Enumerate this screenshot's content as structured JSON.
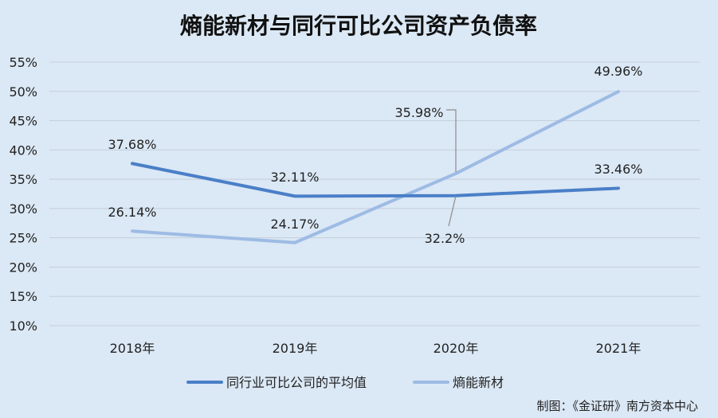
{
  "chart_data": {
    "type": "line",
    "title": "熵能新材与同行可比公司资产负债率",
    "categories": [
      "2018年",
      "2019年",
      "2020年",
      "2021年"
    ],
    "y_ticks": [
      "10%",
      "15%",
      "20%",
      "25%",
      "30%",
      "35%",
      "40%",
      "45%",
      "50%",
      "55%"
    ],
    "ylim": [
      10,
      55
    ],
    "y_unit": "%",
    "grid": true,
    "legend_position": "bottom",
    "series": [
      {
        "name": "同行业可比公司的平均值",
        "values": [
          37.68,
          32.11,
          32.2,
          33.46
        ],
        "labels": [
          "37.68%",
          "32.11%",
          "32.2%",
          "33.46%"
        ],
        "color": "#4a7fc8"
      },
      {
        "name": "熵能新材",
        "values": [
          26.14,
          24.17,
          35.98,
          49.96
        ],
        "labels": [
          "26.14%",
          "24.17%",
          "35.98%",
          "49.96%"
        ],
        "color": "#9dbbe4"
      }
    ],
    "source": "制图：《金证研》南方资本中心"
  }
}
